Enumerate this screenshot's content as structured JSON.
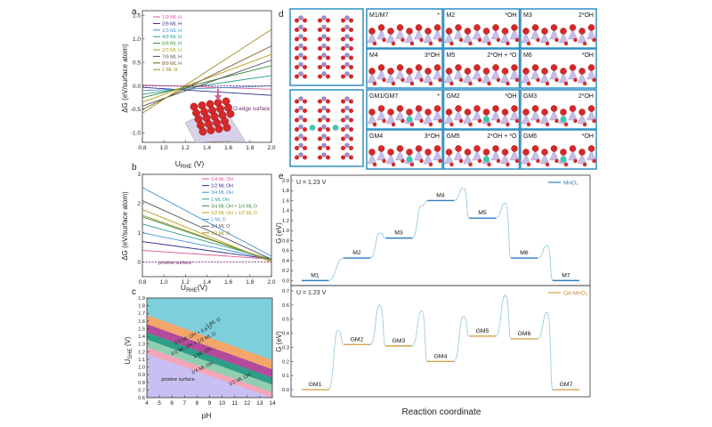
{
  "panel_letters": [
    "a",
    "b",
    "c",
    "d",
    "e"
  ],
  "colors": {
    "pink": "#d9599b",
    "navy": "#2b2b8c",
    "blue": "#3f8fd6",
    "teal": "#2a9d8f",
    "green": "#3a8a3a",
    "gold": "#b89b1a",
    "gray": "#555555",
    "brown": "#7a5a2a",
    "olive": "#9c8f1e",
    "mno2": "#2f7fc0",
    "gdmno2": "#d6a24a",
    "struct_frame": "#2d8fc4",
    "oxygen": "#d62828",
    "manganese": "#b8a8d8",
    "gadolinium": "#3cc7b0",
    "hydrogen": "#ffffff"
  },
  "chart_data": [
    {
      "panel": "a",
      "type": "line",
      "xlabel_main": "U",
      "xlabel_sub": "RHE",
      "xlabel_unit": " (V)",
      "ylabel": "ΔG (eV/surface atom)",
      "xlim": [
        0.8,
        2.0
      ],
      "ylim": [
        -1.2,
        1.6
      ],
      "xticks": [
        "0.8",
        "1.0",
        "1.2",
        "1.4",
        "1.6",
        "1.8",
        "2.0"
      ],
      "yticks": [
        "-1.0",
        "-0.5",
        "0.0",
        "0.5",
        "1.0",
        "1.5"
      ],
      "legend_position": "top-left",
      "annotation": "O-edge surface",
      "series": [
        {
          "name": "1/9 ML H",
          "color": "#d9599b",
          "points": [
            [
              0.8,
              0.02
            ],
            [
              2.0,
              -0.07
            ]
          ]
        },
        {
          "name": "2/9 ML H",
          "color": "#2b2b8c",
          "points": [
            [
              0.8,
              -0.03
            ],
            [
              2.0,
              -0.2
            ]
          ]
        },
        {
          "name": "1/3 ML H",
          "color": "#3f8fd6",
          "points": [
            [
              0.8,
              -0.1
            ],
            [
              2.0,
              0.0
            ]
          ]
        },
        {
          "name": "4/9 ML H",
          "color": "#2a9d8f",
          "points": [
            [
              0.8,
              -0.18
            ],
            [
              2.0,
              0.22
            ]
          ]
        },
        {
          "name": "5/9 ML H",
          "color": "#3a8a3a",
          "points": [
            [
              0.8,
              -0.25
            ],
            [
              2.0,
              0.43
            ]
          ]
        },
        {
          "name": "2/3 ML H",
          "color": "#b89b1a",
          "points": [
            [
              0.8,
              -0.35
            ],
            [
              2.0,
              0.67
            ]
          ]
        },
        {
          "name": "7/9 ML H",
          "color": "#555555",
          "points": [
            [
              0.8,
              -0.43
            ],
            [
              2.0,
              0.55
            ]
          ]
        },
        {
          "name": "8/9 ML H",
          "color": "#7a5a2a",
          "points": [
            [
              0.8,
              -0.5
            ],
            [
              2.0,
              0.85
            ]
          ]
        },
        {
          "name": "1 ML H",
          "color": "#9c8f1e",
          "points": [
            [
              0.8,
              -0.58
            ],
            [
              2.0,
              1.2
            ]
          ]
        }
      ]
    },
    {
      "panel": "b",
      "type": "line",
      "xlabel_main": "U",
      "xlabel_sub": "RHE",
      "xlabel_unit": "(V)",
      "ylabel": "ΔG (eV/surface atom)",
      "xlim": [
        0.8,
        2.0
      ],
      "ylim": [
        -0.5,
        3.0
      ],
      "xticks": [
        "0.8",
        "1.0",
        "1.2",
        "1.4",
        "1.6",
        "1.8",
        "2.0"
      ],
      "yticks": [
        "0",
        "1",
        "2",
        "3"
      ],
      "legend_position": "top-right",
      "annotation": "pristine surface",
      "series": [
        {
          "name": "1/4 ML OH",
          "color": "#d9599b",
          "points": [
            [
              0.8,
              0.4
            ],
            [
              2.0,
              0.1
            ]
          ]
        },
        {
          "name": "1/2 ML OH",
          "color": "#2b2b8c",
          "points": [
            [
              0.8,
              0.7
            ],
            [
              2.0,
              0.1
            ]
          ]
        },
        {
          "name": "3/4 ML OH",
          "color": "#3f8fd6",
          "points": [
            [
              0.8,
              1.0
            ],
            [
              2.0,
              0.1
            ]
          ]
        },
        {
          "name": "1 ML OH",
          "color": "#2a9d8f",
          "points": [
            [
              0.8,
              1.3
            ],
            [
              2.0,
              0.1
            ]
          ]
        },
        {
          "name": "3/4 ML OH + 1/4 ML O",
          "color": "#3a8a3a",
          "points": [
            [
              0.8,
              1.55
            ],
            [
              2.0,
              0.05
            ]
          ]
        },
        {
          "name": "1/2 ML OH + 1/2 ML O",
          "color": "#b89b1a",
          "points": [
            [
              0.8,
              1.8
            ],
            [
              2.0,
              0.0
            ]
          ]
        },
        {
          "name": "1 ML O",
          "color": "#3f8fd6",
          "points": [
            [
              0.8,
              2.55
            ],
            [
              2.0,
              0.2
            ]
          ]
        },
        {
          "name": "3/4 ML O",
          "color": "#555555",
          "points": [
            [
              0.8,
              2.1
            ],
            [
              2.0,
              0.1
            ]
          ]
        },
        {
          "name": "1/2 ML O",
          "color": "#9c8f1e",
          "points": [
            [
              0.8,
              1.6
            ],
            [
              2.0,
              0.05
            ]
          ]
        }
      ]
    },
    {
      "panel": "c",
      "type": "area",
      "xlabel": "pH",
      "ylabel_main": "U",
      "ylabel_sub": "SHE",
      "ylabel_unit": " (V)",
      "xlim": [
        4,
        14
      ],
      "ylim": [
        0.6,
        1.9
      ],
      "xticks": [
        "4",
        "5",
        "6",
        "7",
        "8",
        "9",
        "10",
        "11",
        "12",
        "13",
        "14"
      ],
      "yticks": [
        "0.6",
        "0.7",
        "0.8",
        "0.9",
        "1.0",
        "1.1",
        "1.2",
        "1.3",
        "1.4",
        "1.5",
        "1.6",
        "1.7",
        "1.8",
        "1.9"
      ],
      "regions": [
        {
          "label": "pristine surface",
          "color": "#c9bff2",
          "boundary": null
        },
        {
          "label": "1/4 ML OH",
          "color": "#f2a6b8",
          "boundary": [
            1.17,
            0.58
          ]
        },
        {
          "label": "1/2 ML OH",
          "color": "#8fcfb0",
          "boundary": [
            1.26,
            0.67
          ]
        },
        {
          "label": "1 ML OH",
          "color": "#2e9e86",
          "boundary": [
            1.36,
            0.77
          ]
        },
        {
          "label": "1/2 ML OH + 1/2 ML O",
          "color": "#b34a9b",
          "boundary": [
            1.45,
            0.86
          ]
        },
        {
          "label": "0.5 ML OH + 0.5 O",
          "color": "#f2a66a",
          "boundary": [
            1.56,
            0.97
          ]
        },
        {
          "label": "1 ML O",
          "color": "#7ecfdc",
          "boundary": [
            1.68,
            1.09
          ]
        }
      ],
      "boundary_note": "boundary = [U at pH 4, U at pH 14]"
    },
    {
      "panel": "e",
      "type": "line",
      "xlabel": "Reaction coordinate",
      "ylabel": "G (eV)",
      "subplots": [
        {
          "condition": "U = 1.23 V",
          "legend": "MnO₂",
          "color": "#2f7fc0",
          "ylim": [
            -0.1,
            2.0
          ],
          "yticks": [
            "0.0",
            "0.2",
            "0.4",
            "0.6",
            "0.8",
            "1.0",
            "1.2",
            "1.4",
            "1.6",
            "1.8",
            "2.0"
          ],
          "states": [
            "M1",
            "M2",
            "M3",
            "M4",
            "M5",
            "M6",
            "M7"
          ],
          "energies": [
            0.0,
            0.45,
            0.85,
            1.6,
            1.25,
            0.45,
            0.0
          ],
          "barriers": [
            null,
            0.95,
            1.5,
            1.85,
            1.55,
            0.7,
            null
          ]
        },
        {
          "condition": "U = 1.23 V",
          "legend": "Gd-MnO₂",
          "color": "#d6a24a",
          "ylim": [
            -0.05,
            0.7
          ],
          "yticks": [
            "0.0",
            "0.1",
            "0.2",
            "0.3",
            "0.4",
            "0.5",
            "0.6",
            "0.7"
          ],
          "states": [
            "GM1",
            "GM2",
            "GM3",
            "GM4",
            "GM5",
            "GM6",
            "GM7"
          ],
          "energies": [
            0.0,
            0.32,
            0.31,
            0.2,
            0.38,
            0.36,
            0.0
          ],
          "barriers": [
            0.42,
            0.6,
            0.56,
            0.52,
            0.67,
            0.55,
            null
          ]
        }
      ]
    }
  ],
  "panel_d": {
    "cells": [
      {
        "state": "M1/M7",
        "adsorbate": "*"
      },
      {
        "state": "M2",
        "adsorbate": "*OH"
      },
      {
        "state": "M3",
        "adsorbate": "2*OH"
      },
      {
        "state": "M4",
        "adsorbate": "3*OH"
      },
      {
        "state": "M5",
        "adsorbate": "2*OH + *O"
      },
      {
        "state": "M6",
        "adsorbate": "*OH"
      },
      {
        "state": "GM1/GM7",
        "adsorbate": "*"
      },
      {
        "state": "GM2",
        "adsorbate": "*OH"
      },
      {
        "state": "GM3",
        "adsorbate": "2*OH"
      },
      {
        "state": "GM4",
        "adsorbate": "3*OH"
      },
      {
        "state": "GM5",
        "adsorbate": "2*OH + *O"
      },
      {
        "state": "GM6",
        "adsorbate": "*OH"
      }
    ]
  }
}
